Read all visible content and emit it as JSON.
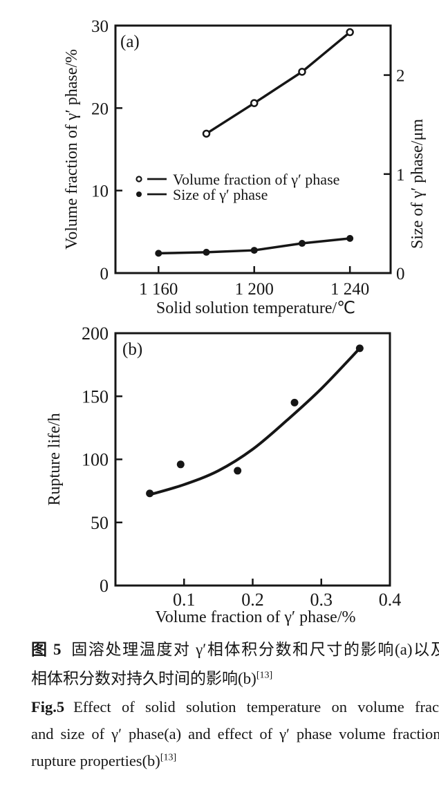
{
  "colors": {
    "ink": "#161616",
    "paper": "#ffffff"
  },
  "chart_data": [
    {
      "id": "a",
      "type": "line",
      "panel_label": "(a)",
      "xlabel": "Solid solution temperature/℃",
      "ylabel_left": "Volume fraction of γ′ phase/%",
      "ylabel_right": "Size of γ′ phase/μm",
      "xlim": [
        1142,
        1257
      ],
      "ylim_left": [
        0,
        30
      ],
      "ylim_right": [
        0,
        2.5
      ],
      "grid": false,
      "x_ticks": [
        {
          "v": 1160,
          "label": "1 160"
        },
        {
          "v": 1200,
          "label": "1 200"
        },
        {
          "v": 1240,
          "label": "1 240"
        }
      ],
      "y_ticks_left": [
        {
          "v": 0,
          "label": "0"
        },
        {
          "v": 10,
          "label": "10"
        },
        {
          "v": 20,
          "label": "20"
        },
        {
          "v": 30,
          "label": "30"
        }
      ],
      "y_ticks_right": [
        {
          "v": 0,
          "label": "0"
        },
        {
          "v": 1,
          "label": "1"
        },
        {
          "v": 2,
          "label": "2"
        }
      ],
      "series": [
        {
          "name": "Volume fraction of γ′ phase",
          "axis": "left",
          "marker": "open-circle",
          "points": [
            [
              1180,
              16.9
            ],
            [
              1200,
              20.6
            ],
            [
              1220,
              24.4
            ],
            [
              1240,
              29.2
            ]
          ]
        },
        {
          "name": "Size of γ′ phase",
          "axis": "right",
          "marker": "filled-circle",
          "points": [
            [
              1160,
              0.2
            ],
            [
              1180,
              0.21
            ],
            [
              1200,
              0.23
            ],
            [
              1220,
              0.3
            ],
            [
              1240,
              0.35
            ]
          ]
        }
      ],
      "legend": {
        "position": "inside-middle-left",
        "items": [
          {
            "marker": "open-circle",
            "label": "Volume fraction of γ′ phase"
          },
          {
            "marker": "filled-circle",
            "label": "Size of γ′ phase"
          }
        ]
      }
    },
    {
      "id": "b",
      "type": "scatter",
      "panel_label": "(b)",
      "xlabel": "Volume fraction of  γ′ phase/%",
      "ylabel": "Rupture life/h",
      "xlim": [
        0,
        0.4
      ],
      "ylim": [
        0,
        200
      ],
      "grid": false,
      "x_ticks": [
        {
          "v": 0.1,
          "label": "0.1"
        },
        {
          "v": 0.2,
          "label": "0.2"
        },
        {
          "v": 0.3,
          "label": "0.3"
        },
        {
          "v": 0.4,
          "label": "0.4"
        }
      ],
      "y_ticks": [
        {
          "v": 0,
          "label": "0"
        },
        {
          "v": 50,
          "label": "50"
        },
        {
          "v": 100,
          "label": "100"
        },
        {
          "v": 150,
          "label": "150"
        },
        {
          "v": 200,
          "label": "200"
        }
      ],
      "points": [
        [
          0.05,
          73
        ],
        [
          0.095,
          96
        ],
        [
          0.178,
          91
        ],
        [
          0.261,
          145
        ],
        [
          0.356,
          188
        ]
      ],
      "fit_curve": [
        [
          0.05,
          72
        ],
        [
          0.1,
          80
        ],
        [
          0.15,
          91
        ],
        [
          0.2,
          108
        ],
        [
          0.25,
          131
        ],
        [
          0.3,
          156
        ],
        [
          0.356,
          188
        ]
      ]
    }
  ],
  "caption": {
    "zh_bold": "图 5",
    "zh_line1": "固溶处理温度对 γ′相体积分数和尺寸的影响(a)以及 γ′",
    "zh_line2": "相体积分数对持久时间的影响(b)",
    "en_bold": "Fig.5",
    "en_line1": "Effect of solid solution temperature on volume fraction",
    "en_line2": "and size of γ′ phase(a) and effect of γ′ phase volume fraction on",
    "en_line3": "rupture properties(b)",
    "ref": "[13]"
  }
}
